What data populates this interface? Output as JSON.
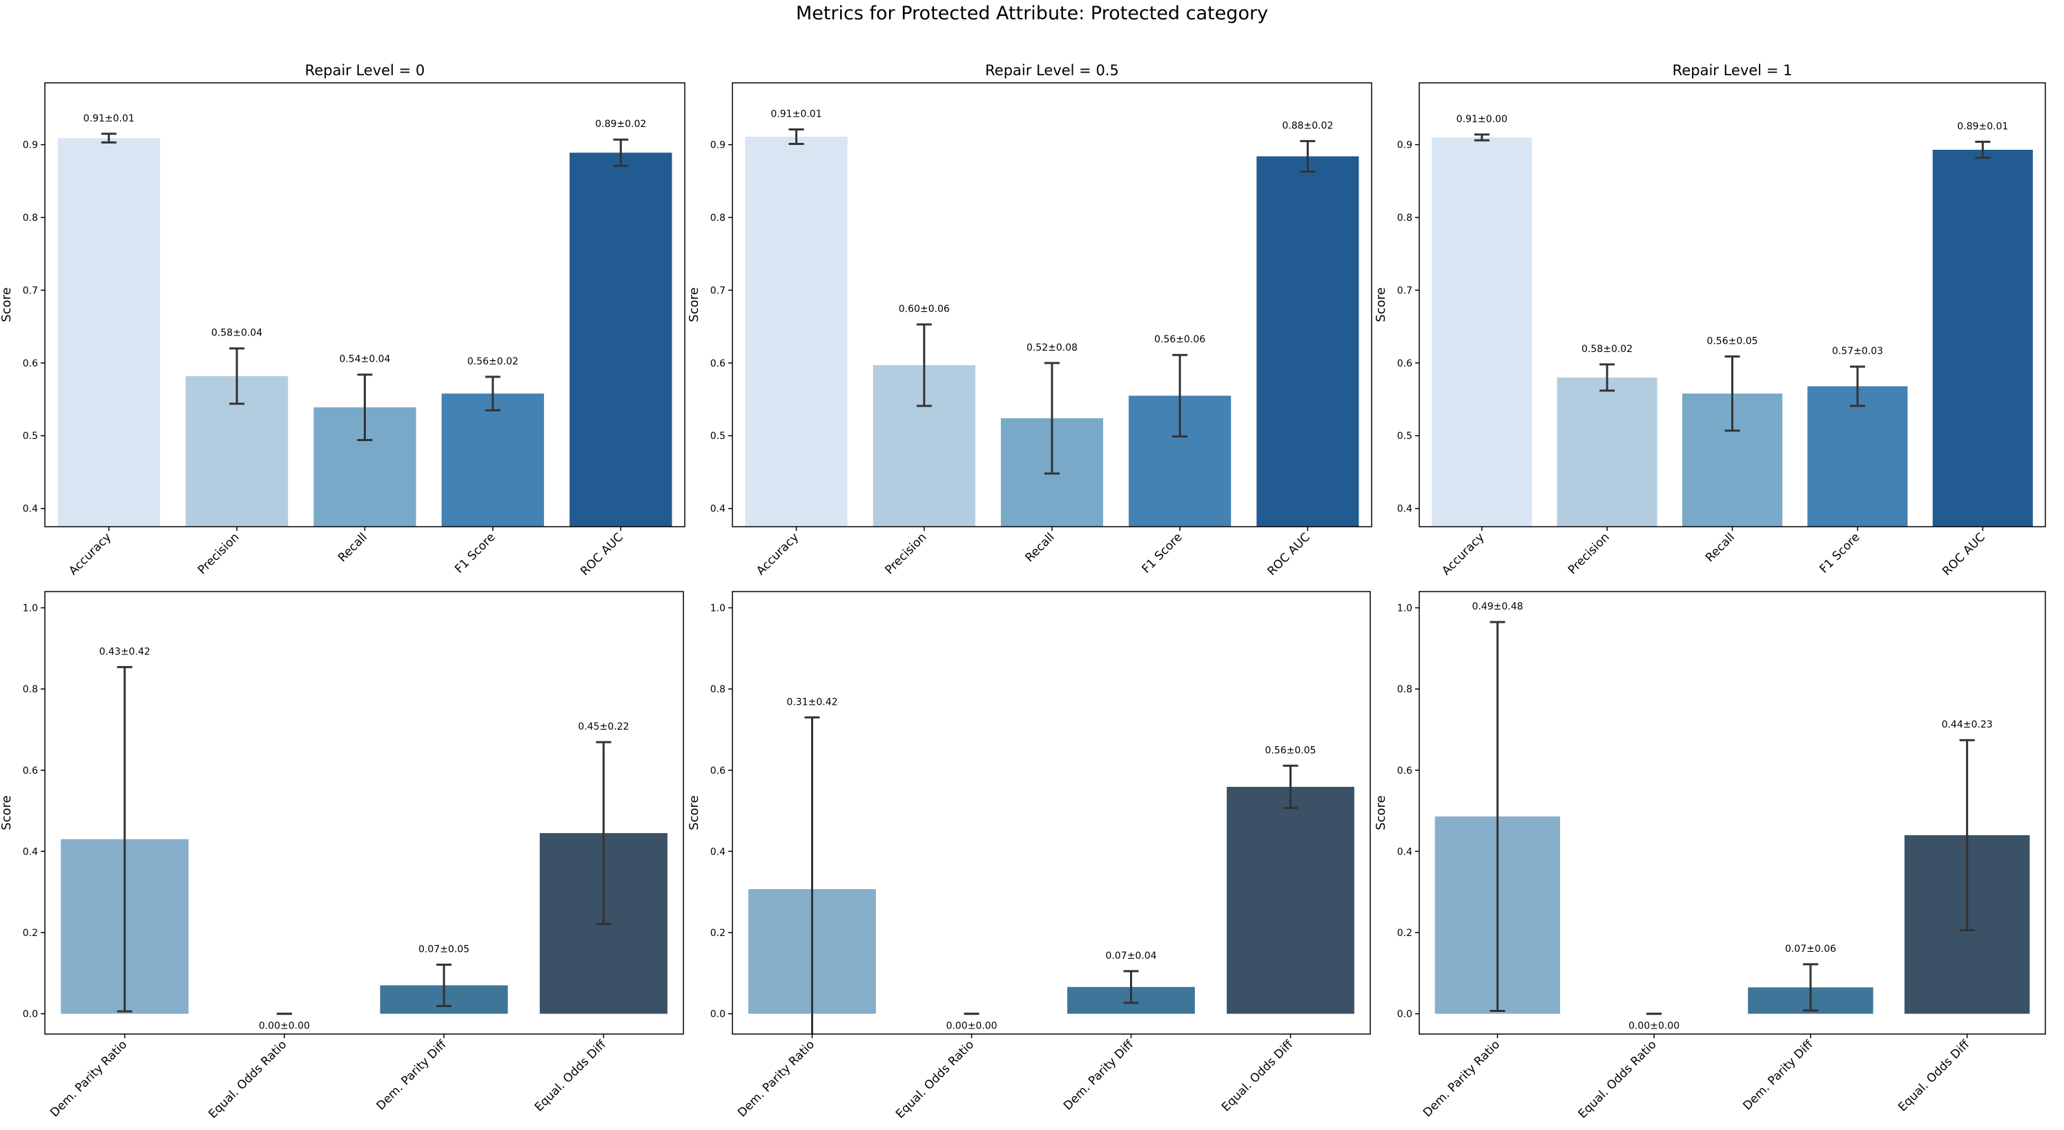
{
  "figure": {
    "title": "Metrics for Protected Attribute: Protected category"
  },
  "chart_data": [
    {
      "type": "bar",
      "title": "Repair Level = 0",
      "ylabel": "Score",
      "ylim": [
        0.375,
        0.985
      ],
      "yticks": [
        0.4,
        0.5,
        0.6,
        0.7,
        0.8,
        0.9
      ],
      "ytick_labels": [
        "0.4",
        "0.5",
        "0.6",
        "0.7",
        "0.8",
        "0.9"
      ],
      "categories": [
        "Accuracy",
        "Precision",
        "Recall",
        "F1 Score",
        "ROC AUC"
      ],
      "values": [
        0.909,
        0.582,
        0.539,
        0.558,
        0.889
      ],
      "errors": [
        0.006,
        0.038,
        0.045,
        0.023,
        0.018
      ],
      "labels": [
        "0.91±0.01",
        "0.58±0.04",
        "0.54±0.04",
        "0.56±0.02",
        "0.89±0.02"
      ],
      "colors": [
        "#d8e6f4",
        "#b3cde0",
        "#78a9c9",
        "#4582b4",
        "#225b92"
      ]
    },
    {
      "type": "bar",
      "title": "Repair Level = 0.5",
      "ylabel": "Score",
      "ylim": [
        0.375,
        0.985
      ],
      "yticks": [
        0.4,
        0.5,
        0.6,
        0.7,
        0.8,
        0.9
      ],
      "ytick_labels": [
        "0.4",
        "0.5",
        "0.6",
        "0.7",
        "0.8",
        "0.9"
      ],
      "categories": [
        "Accuracy",
        "Precision",
        "Recall",
        "F1 Score",
        "ROC AUC"
      ],
      "values": [
        0.911,
        0.597,
        0.524,
        0.555,
        0.884
      ],
      "errors": [
        0.01,
        0.056,
        0.076,
        0.056,
        0.021
      ],
      "labels": [
        "0.91±0.01",
        "0.60±0.06",
        "0.52±0.08",
        "0.56±0.06",
        "0.88±0.02"
      ],
      "colors": [
        "#d8e6f4",
        "#b3cde0",
        "#78a9c9",
        "#4582b4",
        "#225b92"
      ]
    },
    {
      "type": "bar",
      "title": "Repair Level = 1",
      "ylabel": "Score",
      "ylim": [
        0.375,
        0.985
      ],
      "yticks": [
        0.4,
        0.5,
        0.6,
        0.7,
        0.8,
        0.9
      ],
      "ytick_labels": [
        "0.4",
        "0.5",
        "0.6",
        "0.7",
        "0.8",
        "0.9"
      ],
      "categories": [
        "Accuracy",
        "Precision",
        "Recall",
        "F1 Score",
        "ROC AUC"
      ],
      "values": [
        0.91,
        0.58,
        0.558,
        0.568,
        0.893
      ],
      "errors": [
        0.004,
        0.018,
        0.051,
        0.027,
        0.011
      ],
      "labels": [
        "0.91±0.00",
        "0.58±0.02",
        "0.56±0.05",
        "0.57±0.03",
        "0.89±0.01"
      ],
      "colors": [
        "#d8e6f4",
        "#b3cde0",
        "#78a9c9",
        "#4582b4",
        "#225b92"
      ]
    },
    {
      "type": "bar",
      "title": "",
      "ylabel": "Score",
      "ylim": [
        -0.05,
        1.04
      ],
      "yticks": [
        0.0,
        0.2,
        0.4,
        0.6,
        0.8,
        1.0
      ],
      "ytick_labels": [
        "0.0",
        "0.2",
        "0.4",
        "0.6",
        "0.8",
        "1.0"
      ],
      "categories": [
        "Dem. Parity Ratio",
        "Equal. Odds Ratio",
        "Dem. Parity Diff",
        "Equal. Odds Diff"
      ],
      "values": [
        0.43,
        0.0,
        0.07,
        0.445
      ],
      "errors": [
        0.424,
        0.0,
        0.051,
        0.224
      ],
      "labels": [
        "0.43±0.42",
        "0.00±0.00",
        "0.07±0.05",
        "0.45±0.22"
      ],
      "colors": [
        "#87aecb",
        "#5c92bc",
        "#3f7599",
        "#3b5166"
      ]
    },
    {
      "type": "bar",
      "title": "",
      "ylabel": "Score",
      "ylim": [
        -0.05,
        1.04
      ],
      "yticks": [
        0.0,
        0.2,
        0.4,
        0.6,
        0.8,
        1.0
      ],
      "ytick_labels": [
        "0.0",
        "0.2",
        "0.4",
        "0.6",
        "0.8",
        "1.0"
      ],
      "categories": [
        "Dem. Parity Ratio",
        "Equal. Odds Ratio",
        "Dem. Parity Diff",
        "Equal. Odds Diff"
      ],
      "values": [
        0.307,
        0.0,
        0.066,
        0.559
      ],
      "errors": [
        0.423,
        0.0,
        0.039,
        0.052
      ],
      "labels": [
        "0.31±0.42",
        "0.00±0.00",
        "0.07±0.04",
        "0.56±0.05"
      ],
      "colors": [
        "#87aecb",
        "#5c92bc",
        "#3f7599",
        "#3b5166"
      ]
    },
    {
      "type": "bar",
      "title": "",
      "ylabel": "Score",
      "ylim": [
        -0.05,
        1.04
      ],
      "yticks": [
        0.0,
        0.2,
        0.4,
        0.6,
        0.8,
        1.0
      ],
      "ytick_labels": [
        "0.0",
        "0.2",
        "0.4",
        "0.6",
        "0.8",
        "1.0"
      ],
      "categories": [
        "Dem. Parity Ratio",
        "Equal. Odds Ratio",
        "Dem. Parity Diff",
        "Equal. Odds Diff"
      ],
      "values": [
        0.486,
        0.0,
        0.065,
        0.44
      ],
      "errors": [
        0.479,
        0.0,
        0.057,
        0.234
      ],
      "labels": [
        "0.49±0.48",
        "0.00±0.00",
        "0.07±0.06",
        "0.44±0.23"
      ],
      "colors": [
        "#87aecb",
        "#5c92bc",
        "#3f7599",
        "#3b5166"
      ]
    }
  ]
}
